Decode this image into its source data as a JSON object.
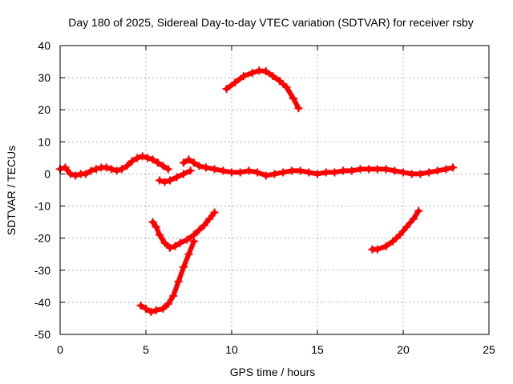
{
  "chart_data": {
    "type": "line",
    "title": "Day 180 of 2025, Sidereal Day-to-day VTEC variation (SDTVAR) for receiver rsby",
    "xlabel": "GPS time / hours",
    "ylabel": "SDTVAR / TECUs",
    "xlim": [
      0,
      25
    ],
    "ylim": [
      -50,
      40
    ],
    "xticks": [
      0,
      5,
      10,
      15,
      20,
      25
    ],
    "yticks": [
      -50,
      -40,
      -30,
      -20,
      -10,
      0,
      10,
      20,
      30,
      40
    ],
    "grid": true,
    "legend": "none",
    "series_color": "#ff0000",
    "series": [
      {
        "name": "segment-1",
        "x": [
          0,
          0.3,
          0.6,
          0.9,
          1.2,
          1.5,
          1.8,
          2.1,
          2.4,
          2.7,
          3.0,
          3.3,
          3.6,
          3.9,
          4.2,
          4.5,
          4.8,
          5.1,
          5.4,
          5.7,
          6.0,
          6.3
        ],
        "y": [
          1.5,
          2,
          0,
          -0.5,
          0,
          0,
          1,
          1.5,
          2,
          2,
          1.5,
          1,
          1.5,
          2.5,
          4,
          5,
          5.5,
          5,
          4.5,
          3.5,
          2.5,
          1.5
        ]
      },
      {
        "name": "segment-2",
        "x": [
          5.8,
          6.1,
          6.4,
          6.8,
          7.2,
          7.6
        ],
        "y": [
          -2,
          -2.5,
          -2,
          -1,
          0,
          1
        ]
      },
      {
        "name": "segment-3",
        "x": [
          7.2,
          7.5,
          7.8,
          8.1,
          8.5,
          9.0,
          9.5,
          10,
          10.5,
          11,
          11.5,
          12,
          12.5,
          13,
          13.5,
          14,
          14.5,
          15,
          15.5,
          16,
          16.5,
          17,
          17.5,
          18,
          18.5,
          19,
          19.5,
          20,
          20.5,
          21,
          21.5,
          22,
          22.5,
          22.9
        ],
        "y": [
          3.5,
          4.5,
          3.5,
          2.5,
          2,
          1.5,
          1,
          0.5,
          0.5,
          1,
          0.5,
          -0.5,
          0,
          0.5,
          1,
          1,
          0.5,
          0,
          0.5,
          0.5,
          1,
          1,
          1.5,
          1.5,
          1.5,
          1.5,
          1,
          0.5,
          0,
          0,
          0.5,
          1,
          1.5,
          2
        ]
      },
      {
        "name": "segment-4",
        "x": [
          9.7,
          10.2,
          10.7,
          11.2,
          11.6,
          12.0,
          12.4,
          12.8,
          13.2,
          13.6,
          13.9
        ],
        "y": [
          26.5,
          28.5,
          30.5,
          31.5,
          32.2,
          32.0,
          30.5,
          29,
          27,
          23.5,
          20.5
        ]
      },
      {
        "name": "segment-5",
        "x": [
          5.4,
          5.6,
          5.8,
          6.1,
          6.4,
          6.7,
          7.0,
          7.4,
          7.8,
          8.1,
          8.4,
          8.7,
          9.0
        ],
        "y": [
          -15,
          -16.5,
          -19,
          -21.5,
          -23,
          -22.5,
          -21.5,
          -20.5,
          -19,
          -17.5,
          -16,
          -14,
          -12
        ]
      },
      {
        "name": "segment-6",
        "x": [
          4.7,
          5.0,
          5.3,
          5.6,
          6.0,
          6.3,
          6.6,
          6.9,
          7.2,
          7.5,
          7.8
        ],
        "y": [
          -41,
          -42,
          -43,
          -42.5,
          -42,
          -40.5,
          -38,
          -33.5,
          -29,
          -25,
          -21
        ]
      },
      {
        "name": "segment-7",
        "x": [
          18.2,
          18.5,
          19.0,
          19.4,
          19.8,
          20.2,
          20.6,
          20.9
        ],
        "y": [
          -23.5,
          -23.5,
          -22.5,
          -21,
          -19,
          -16.5,
          -14,
          -11.5
        ]
      }
    ]
  }
}
